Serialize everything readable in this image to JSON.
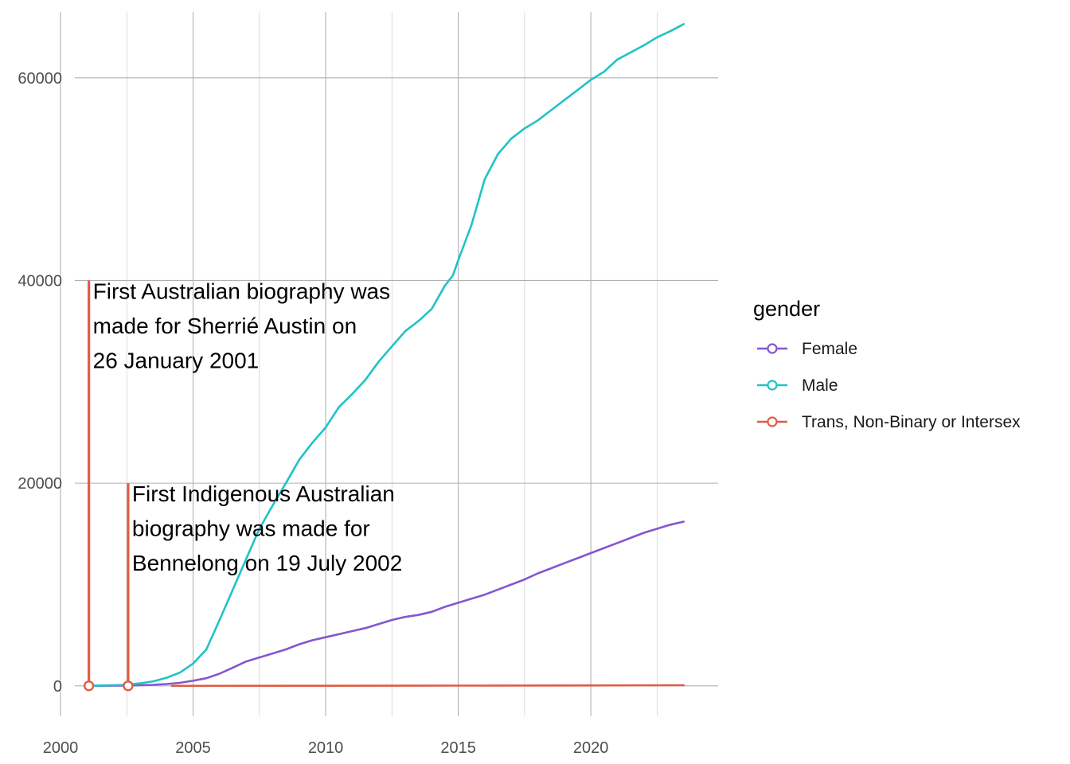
{
  "chart_data": {
    "type": "line",
    "title": "",
    "xlabel": "",
    "ylabel": "",
    "xlim": [
      2000,
      2024.8
    ],
    "ylim": [
      -3000,
      66500
    ],
    "x_ticks": [
      2000,
      2005,
      2010,
      2015,
      2020
    ],
    "y_ticks": [
      0,
      20000,
      40000,
      60000
    ],
    "grid": true,
    "legend": {
      "title": "gender",
      "position": "right"
    },
    "series": [
      {
        "name": "Female",
        "color": "#8656D0",
        "points": [
          [
            2001.08,
            0
          ],
          [
            2002.5,
            30
          ],
          [
            2003.0,
            60
          ],
          [
            2003.5,
            100
          ],
          [
            2004.0,
            180
          ],
          [
            2004.5,
            300
          ],
          [
            2005.0,
            500
          ],
          [
            2005.5,
            750
          ],
          [
            2006.0,
            1200
          ],
          [
            2006.5,
            1800
          ],
          [
            2007.0,
            2400
          ],
          [
            2007.5,
            2800
          ],
          [
            2008.0,
            3200
          ],
          [
            2008.5,
            3600
          ],
          [
            2009.0,
            4100
          ],
          [
            2009.5,
            4500
          ],
          [
            2010.0,
            4800
          ],
          [
            2010.5,
            5100
          ],
          [
            2011.0,
            5400
          ],
          [
            2011.5,
            5700
          ],
          [
            2012.0,
            6100
          ],
          [
            2012.5,
            6500
          ],
          [
            2013.0,
            6800
          ],
          [
            2013.5,
            7000
          ],
          [
            2014.0,
            7300
          ],
          [
            2014.5,
            7800
          ],
          [
            2015.0,
            8200
          ],
          [
            2015.5,
            8600
          ],
          [
            2016.0,
            9000
          ],
          [
            2016.5,
            9500
          ],
          [
            2017.0,
            10000
          ],
          [
            2017.5,
            10500
          ],
          [
            2018.0,
            11100
          ],
          [
            2018.5,
            11600
          ],
          [
            2019.0,
            12100
          ],
          [
            2019.5,
            12600
          ],
          [
            2020.0,
            13100
          ],
          [
            2020.5,
            13600
          ],
          [
            2021.0,
            14100
          ],
          [
            2021.5,
            14600
          ],
          [
            2022.0,
            15100
          ],
          [
            2022.5,
            15500
          ],
          [
            2023.0,
            15900
          ],
          [
            2023.5,
            16200
          ]
        ]
      },
      {
        "name": "Male",
        "color": "#1FC3C7",
        "points": [
          [
            2001.08,
            0
          ],
          [
            2002.5,
            100
          ],
          [
            2003.0,
            250
          ],
          [
            2003.5,
            450
          ],
          [
            2004.0,
            800
          ],
          [
            2004.5,
            1300
          ],
          [
            2005.0,
            2200
          ],
          [
            2005.5,
            3600
          ],
          [
            2006.0,
            6500
          ],
          [
            2006.5,
            9500
          ],
          [
            2007.0,
            12500
          ],
          [
            2007.5,
            15500
          ],
          [
            2008.0,
            17800
          ],
          [
            2008.5,
            20000
          ],
          [
            2009.0,
            22300
          ],
          [
            2009.5,
            24000
          ],
          [
            2010.0,
            25500
          ],
          [
            2010.5,
            27500
          ],
          [
            2011.0,
            28800
          ],
          [
            2011.5,
            30200
          ],
          [
            2012.0,
            32000
          ],
          [
            2012.5,
            33500
          ],
          [
            2013.0,
            35000
          ],
          [
            2013.5,
            36000
          ],
          [
            2014.0,
            37200
          ],
          [
            2014.5,
            39500
          ],
          [
            2014.8,
            40500
          ],
          [
            2015.0,
            42000
          ],
          [
            2015.5,
            45500
          ],
          [
            2016.0,
            50000
          ],
          [
            2016.5,
            52500
          ],
          [
            2017.0,
            54000
          ],
          [
            2017.5,
            55000
          ],
          [
            2018.0,
            55800
          ],
          [
            2018.5,
            56800
          ],
          [
            2019.0,
            57800
          ],
          [
            2019.5,
            58800
          ],
          [
            2020.0,
            59800
          ],
          [
            2020.5,
            60600
          ],
          [
            2021.0,
            61800
          ],
          [
            2021.5,
            62500
          ],
          [
            2022.0,
            63200
          ],
          [
            2022.5,
            64000
          ],
          [
            2023.0,
            64600
          ],
          [
            2023.5,
            65300
          ]
        ]
      },
      {
        "name": "Trans, Non-Binary or Intersex",
        "color": "#E05C44",
        "points": [
          [
            2004.2,
            0
          ],
          [
            2010,
            10
          ],
          [
            2015,
            20
          ],
          [
            2020,
            40
          ],
          [
            2023.5,
            60
          ]
        ]
      }
    ],
    "annotations": [
      {
        "x": 2001.07,
        "y": 40000,
        "lines": [
          "First Australian biography was",
          "made for Sherrié Austin on",
          "26 January 2001"
        ],
        "color": "#E05C44"
      },
      {
        "x": 2002.55,
        "y": 20000,
        "lines": [
          "First Indigenous Australian",
          "biography was made for",
          "Bennelong on 19 July 2002"
        ],
        "color": "#E05C44"
      }
    ]
  }
}
